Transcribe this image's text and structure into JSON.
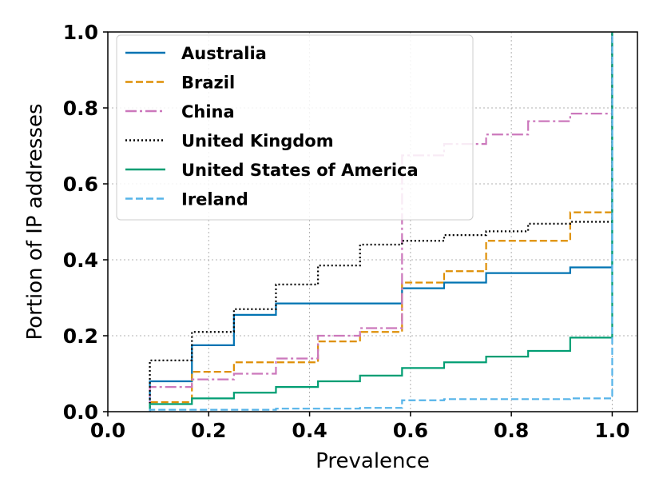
{
  "chart_data": {
    "type": "line",
    "subtype": "step-cdf",
    "title": "",
    "xlabel": "Prevalence",
    "ylabel": "Portion of IP addresses",
    "xlim": [
      0.0,
      1.05
    ],
    "ylim": [
      0.0,
      1.0
    ],
    "xticks": [
      "0.0",
      "0.2",
      "0.4",
      "0.6",
      "0.8",
      "1.0"
    ],
    "yticks": [
      "0.0",
      "0.2",
      "0.4",
      "0.6",
      "0.8",
      "1.0"
    ],
    "grid": true,
    "legend_position": "top-left",
    "x": [
      0.0833,
      0.1667,
      0.25,
      0.3333,
      0.4167,
      0.5,
      0.5833,
      0.6667,
      0.75,
      0.8333,
      0.9167,
      1.0
    ],
    "series": [
      {
        "name": "Australia",
        "color": "#0173b2",
        "dash": "solid",
        "values": [
          0.08,
          0.175,
          0.255,
          0.285,
          0.285,
          0.285,
          0.325,
          0.34,
          0.365,
          0.365,
          0.38,
          1.0
        ]
      },
      {
        "name": "Brazil",
        "color": "#de8f05",
        "dash": "dashed",
        "values": [
          0.025,
          0.105,
          0.13,
          0.13,
          0.185,
          0.21,
          0.34,
          0.37,
          0.45,
          0.45,
          0.525,
          1.0
        ]
      },
      {
        "name": "China",
        "color": "#cc78bc",
        "dash": "dashdot",
        "values": [
          0.065,
          0.085,
          0.1,
          0.14,
          0.2,
          0.22,
          0.675,
          0.705,
          0.73,
          0.765,
          0.785,
          1.0
        ]
      },
      {
        "name": "United Kingdom",
        "color": "#000000",
        "dash": "dotted",
        "values": [
          0.135,
          0.21,
          0.27,
          0.335,
          0.385,
          0.44,
          0.45,
          0.465,
          0.475,
          0.495,
          0.5,
          1.0
        ]
      },
      {
        "name": "United States of America",
        "color": "#029e73",
        "dash": "solid",
        "values": [
          0.02,
          0.035,
          0.05,
          0.065,
          0.08,
          0.095,
          0.115,
          0.13,
          0.145,
          0.16,
          0.195,
          1.0
        ]
      },
      {
        "name": "Ireland",
        "color": "#56b4e9",
        "dash": "dashed",
        "values": [
          0.005,
          0.005,
          0.005,
          0.008,
          0.008,
          0.01,
          0.03,
          0.033,
          0.033,
          0.033,
          0.035,
          1.0
        ]
      }
    ]
  }
}
